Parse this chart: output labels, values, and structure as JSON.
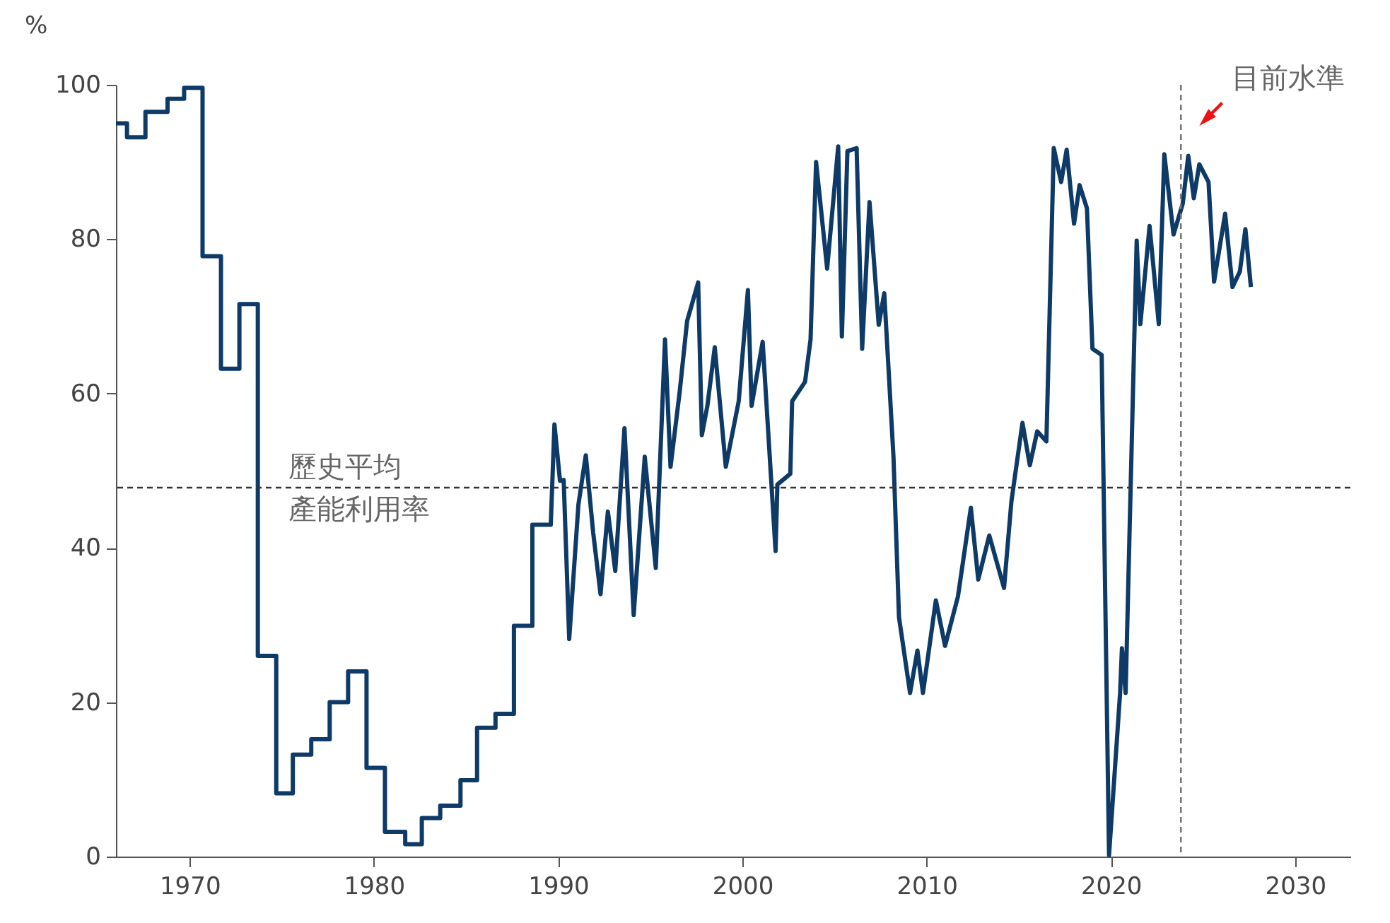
{
  "chart_data": {
    "type": "line",
    "ylabel": "%",
    "x": [
      1966.0,
      1966.6,
      1966.6,
      1967.6,
      1967.6,
      1968.8,
      1968.8,
      1969.7,
      1969.7,
      1970.7,
      1970.7,
      1971.7,
      1971.7,
      1972.7,
      1972.7,
      1973.7,
      1973.7,
      1974.7,
      1974.7,
      1975.6,
      1975.6,
      1976.6,
      1976.6,
      1977.6,
      1977.6,
      1978.6,
      1978.6,
      1979.6,
      1979.6,
      1980.6,
      1980.6,
      1981.7,
      1981.7,
      1982.6,
      1982.6,
      1983.6,
      1983.6,
      1984.7,
      1984.7,
      1985.6,
      1985.6,
      1986.6,
      1986.6,
      1987.6,
      1987.6,
      1988.6,
      1988.6,
      1989.6,
      1989.8,
      1990.1,
      1990.3,
      1990.6,
      1991.1,
      1991.5,
      1991.9,
      1992.3,
      1992.7,
      1993.1,
      1993.6,
      1994.1,
      1994.7,
      1995.3,
      1995.8,
      1996.1,
      1996.6,
      1997.0,
      1997.6,
      1997.8,
      1998.1,
      1998.5,
      1999.1,
      1999.8,
      2000.3,
      2000.5,
      2001.1,
      2001.8,
      2001.9,
      2002.6,
      2002.7,
      2003.4,
      2003.7,
      2004.0,
      2004.6,
      2005.2,
      2005.4,
      2005.7,
      2006.2,
      2006.5,
      2006.9,
      2007.4,
      2007.7,
      2008.2,
      2008.5,
      2009.1,
      2009.5,
      2009.8,
      2010.5,
      2011.0,
      2011.7,
      2012.4,
      2012.8,
      2013.4,
      2014.2,
      2014.6,
      2015.2,
      2015.6,
      2016.0,
      2016.5,
      2016.9,
      2017.3,
      2017.6,
      2018.0,
      2018.3,
      2018.7,
      2019.0,
      2019.5,
      2019.9,
      2020.5,
      2020.6,
      2020.8,
      2021.4,
      2021.6,
      2022.1,
      2022.6,
      2022.9,
      2023.4,
      2023.9,
      2024.2,
      2024.5,
      2024.8,
      2025.3,
      2025.6,
      2026.2,
      2026.6,
      2027.0,
      2027.3,
      2027.6
    ],
    "series": [
      {
        "color": "#0d3a66",
        "values": [
          95,
          95,
          93.2,
          93.2,
          96.5,
          96.5,
          98.2,
          98.2,
          99.6,
          99.6,
          77.8,
          77.8,
          63.2,
          63.2,
          71.6,
          71.6,
          26,
          26,
          8.2,
          8.2,
          13.2,
          13.2,
          15.2,
          15.2,
          20,
          20,
          24,
          24,
          11.5,
          11.5,
          3.2,
          3.2,
          1.6,
          1.6,
          5,
          5,
          6.6,
          6.6,
          9.9,
          9.9,
          16.7,
          16.7,
          18.5,
          18.5,
          29.9,
          29.9,
          43,
          43,
          56,
          48.7,
          48.8,
          28.2,
          45.6,
          52,
          42,
          34,
          44.7,
          37,
          55.5,
          31.3,
          51.8,
          37.4,
          67,
          50.5,
          60.3,
          69.4,
          74.4,
          54.6,
          58.4,
          66,
          50.5,
          59,
          73.4,
          58.4,
          66.7,
          39.6,
          48.2,
          49.6,
          59,
          61.5,
          67,
          90,
          76.2,
          92,
          67.4,
          91.4,
          91.8,
          65.8,
          84.8,
          68.9,
          73,
          51.8,
          31,
          21.2,
          26.7,
          21.2,
          33.2,
          27.3,
          33.7,
          45.2,
          35.9,
          41.6,
          34.8,
          46,
          56.2,
          50.7,
          55.1,
          53.8,
          91.8,
          87.4,
          91.6,
          82,
          87,
          84,
          65.8,
          65,
          0.2,
          21.2,
          27,
          21.2,
          79.8,
          69,
          81.7,
          69,
          91,
          80.6,
          84.6,
          90.8,
          85.3,
          89.7,
          87.4,
          74.5,
          83.3,
          73.8,
          75.8,
          81.3,
          73.8
        ]
      }
    ],
    "xlim": [
      1966,
      2033
    ],
    "xticks": [
      1970,
      1980,
      1990,
      2000,
      2010,
      2020,
      2030
    ],
    "ylim": [
      0,
      100
    ],
    "yticks": [
      0,
      20,
      40,
      60,
      80,
      100
    ],
    "grid": false,
    "marker": "none",
    "line_style": "solid",
    "ref_lines": [
      {
        "axis": "y",
        "value": 47.8,
        "label": "歷史平均產能利用率",
        "color": "#333333",
        "line_style": "dashed"
      },
      {
        "axis": "x",
        "value": 2023.8,
        "label": "目前水準",
        "color": "#777777",
        "line_style": "dashed"
      }
    ]
  }
}
